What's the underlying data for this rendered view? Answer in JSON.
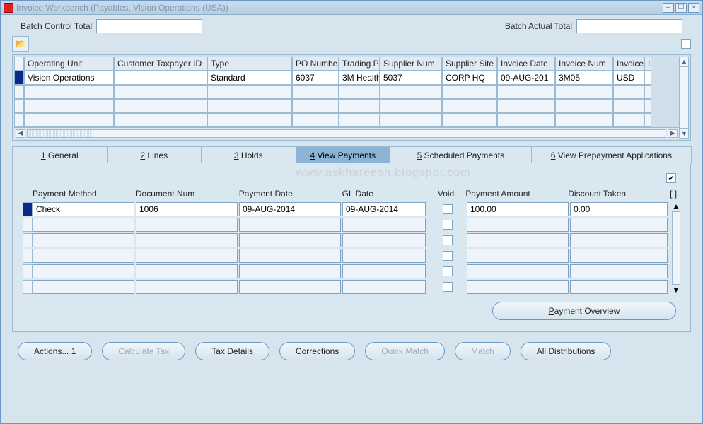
{
  "window": {
    "title": "Invoice Workbench (Payables, Vision Operations (USA))"
  },
  "batch": {
    "control_label": "Batch Control Total",
    "actual_label": "Batch Actual Total",
    "control_value": "",
    "actual_value": ""
  },
  "watermark": "www.askhareesh.blogspot.com",
  "invoice_grid": {
    "columns": [
      "Operating Unit",
      "Customer Taxpayer ID",
      "Type",
      "PO Number",
      "Trading Pa",
      "Supplier Num",
      "Supplier Site",
      "Invoice Date",
      "Invoice Num",
      "Invoice",
      "I"
    ],
    "rows": [
      {
        "active": true,
        "cells": [
          "Vision Operations",
          "",
          "Standard",
          "6037",
          "3M Health",
          "5037",
          "CORP HQ",
          "09-AUG-201",
          "3M05",
          "USD",
          ""
        ]
      },
      {
        "active": false,
        "cells": [
          "",
          "",
          "",
          "",
          "",
          "",
          "",
          "",
          "",
          "",
          ""
        ]
      },
      {
        "active": false,
        "cells": [
          "",
          "",
          "",
          "",
          "",
          "",
          "",
          "",
          "",
          "",
          ""
        ]
      },
      {
        "active": false,
        "cells": [
          "",
          "",
          "",
          "",
          "",
          "",
          "",
          "",
          "",
          "",
          ""
        ]
      }
    ]
  },
  "tabs": {
    "items": [
      {
        "label_pre": "1",
        "label": " General"
      },
      {
        "label_pre": "2",
        "label": " Lines"
      },
      {
        "label_pre": "3",
        "label": " Holds"
      },
      {
        "label_pre": "4",
        "label": " View Payments"
      },
      {
        "label_pre": "5",
        "label": " Scheduled Payments"
      },
      {
        "label_pre": "6",
        "label": " View Prepayment Applications"
      }
    ],
    "active_index": 3
  },
  "payments": {
    "columns": {
      "pm": "Payment Method",
      "dn": "Document Num",
      "pd": "Payment Date",
      "gl": "GL Date",
      "void": "Void",
      "pa": "Payment Amount",
      "dt": "Discount Taken",
      "br": "[  ]"
    },
    "rows": [
      {
        "active": true,
        "pm": "Check",
        "dn": "1006",
        "pd": "09-AUG-2014",
        "gl": "09-AUG-2014",
        "void": false,
        "pa": "100.00",
        "dt": "0.00"
      },
      {
        "active": false,
        "pm": "",
        "dn": "",
        "pd": "",
        "gl": "",
        "void": false,
        "pa": "",
        "dt": ""
      },
      {
        "active": false,
        "pm": "",
        "dn": "",
        "pd": "",
        "gl": "",
        "void": false,
        "pa": "",
        "dt": ""
      },
      {
        "active": false,
        "pm": "",
        "dn": "",
        "pd": "",
        "gl": "",
        "void": false,
        "pa": "",
        "dt": ""
      },
      {
        "active": false,
        "pm": "",
        "dn": "",
        "pd": "",
        "gl": "",
        "void": false,
        "pa": "",
        "dt": ""
      },
      {
        "active": false,
        "pm": "",
        "dn": "",
        "pd": "",
        "gl": "",
        "void": false,
        "pa": "",
        "dt": ""
      }
    ],
    "top_checkbox": true,
    "overview_label": "Payment Overview"
  },
  "buttons": {
    "actions": "Actions... 1",
    "calc_tax": "Calculate Tax",
    "tax_details": "Tax Details",
    "corrections": "Corrections",
    "quick_match": "Quick Match",
    "match": "Match",
    "all_dist": "All Distributions"
  },
  "colors": {
    "bg": "#d6e4ee",
    "border": "#6a98c4",
    "header_bg": "#dfeaf3",
    "active_tab": "#8cb4d6",
    "inactive_tab": "#d9e7f1",
    "rowmark_active": "#0a2a8a",
    "text": "#222222",
    "disabled_text": "#9aaebf"
  }
}
